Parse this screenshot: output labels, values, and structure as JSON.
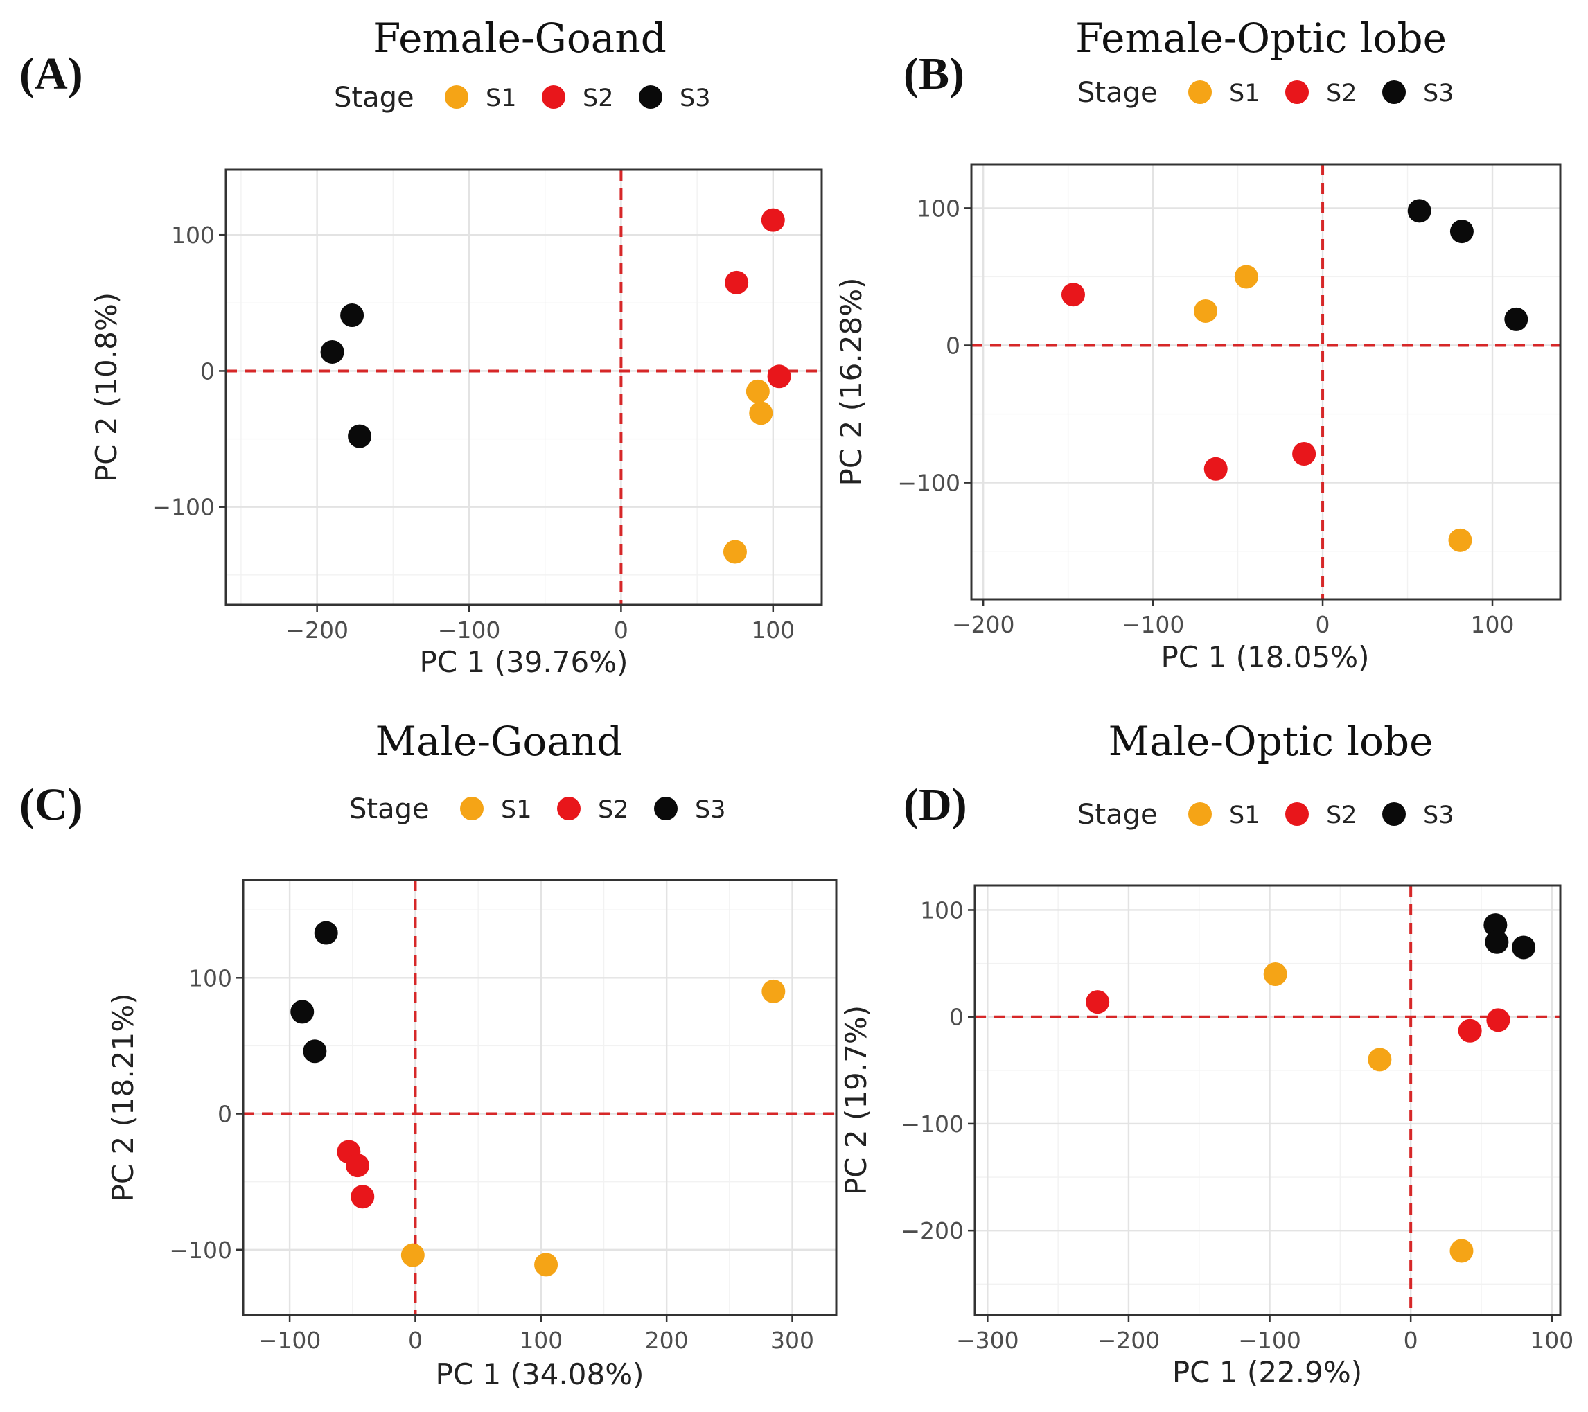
{
  "figure": {
    "legend_title": "Stage",
    "stages": [
      {
        "key": "S1",
        "label": "S1",
        "color": "#F5A416"
      },
      {
        "key": "S2",
        "label": "S2",
        "color": "#E8161B"
      },
      {
        "key": "S3",
        "label": "S3",
        "color": "#0A0A0A"
      }
    ]
  },
  "chart_data": [
    {
      "type": "scatter",
      "panel_label": "(A)",
      "title": "Female-Goand",
      "xlabel": "PC 1 (39.76%)",
      "ylabel": "PC 2 (10.8%)",
      "xlim": [
        -260,
        132
      ],
      "ylim": [
        -172,
        148
      ],
      "xticks": [
        -200,
        -100,
        0,
        100
      ],
      "xtick_labels": [
        "−200",
        "−100",
        "0",
        "100"
      ],
      "yticks": [
        -100,
        0,
        100
      ],
      "ytick_labels": [
        "−100",
        "0",
        "100"
      ],
      "series": [
        {
          "name": "S1",
          "points": [
            [
              90,
              -15
            ],
            [
              92,
              -31
            ],
            [
              75,
              -133
            ]
          ]
        },
        {
          "name": "S2",
          "points": [
            [
              100,
              111
            ],
            [
              76,
              65
            ],
            [
              104,
              -4
            ]
          ]
        },
        {
          "name": "S3",
          "points": [
            [
              -177,
              41
            ],
            [
              -190,
              14
            ],
            [
              -172,
              -48
            ]
          ]
        }
      ]
    },
    {
      "type": "scatter",
      "panel_label": "(B)",
      "title": "Female-Optic lobe",
      "xlabel": "PC 1 (18.05%)",
      "ylabel": "PC 2 (16.28%)",
      "xlim": [
        -207,
        140
      ],
      "ylim": [
        -185,
        132
      ],
      "xticks": [
        -200,
        -100,
        0,
        100
      ],
      "xtick_labels": [
        "−200",
        "−100",
        "0",
        "100"
      ],
      "yticks": [
        -100,
        0,
        100
      ],
      "ytick_labels": [
        "−100",
        "0",
        "100"
      ],
      "series": [
        {
          "name": "S1",
          "points": [
            [
              -45,
              50
            ],
            [
              -69,
              25
            ],
            [
              81,
              -142
            ]
          ]
        },
        {
          "name": "S2",
          "points": [
            [
              -147,
              37
            ],
            [
              -63,
              -90
            ],
            [
              -11,
              -79
            ]
          ]
        },
        {
          "name": "S3",
          "points": [
            [
              57,
              98
            ],
            [
              82,
              83
            ],
            [
              114,
              19
            ]
          ]
        }
      ]
    },
    {
      "type": "scatter",
      "panel_label": "(C)",
      "title": "Male-Goand",
      "xlabel": "PC 1 (34.08%)",
      "ylabel": "PC 2 (18.21%)",
      "xlim": [
        -137,
        335
      ],
      "ylim": [
        -148,
        172
      ],
      "xticks": [
        -100,
        0,
        100,
        200,
        300
      ],
      "xtick_labels": [
        "−100",
        "0",
        "100",
        "200",
        "300"
      ],
      "yticks": [
        -100,
        0,
        100
      ],
      "ytick_labels": [
        "−100",
        "0",
        "100"
      ],
      "series": [
        {
          "name": "S1",
          "points": [
            [
              285,
              90
            ],
            [
              -2,
              -104
            ],
            [
              104,
              -111
            ]
          ]
        },
        {
          "name": "S2",
          "points": [
            [
              -53,
              -28
            ],
            [
              -46,
              -38
            ],
            [
              -42,
              -61
            ]
          ]
        },
        {
          "name": "S3",
          "points": [
            [
              -71,
              133
            ],
            [
              -90,
              75
            ],
            [
              -80,
              46
            ]
          ]
        }
      ]
    },
    {
      "type": "scatter",
      "panel_label": "(D)",
      "title": "Male-Optic lobe",
      "xlabel": "PC 1 (22.9%)",
      "ylabel": "PC 2 (19.7%)",
      "xlim": [
        -309,
        106
      ],
      "ylim": [
        -279,
        123
      ],
      "xticks": [
        -300,
        -200,
        -100,
        0,
        100
      ],
      "xtick_labels": [
        "−300",
        "−200",
        "−100",
        "0",
        "100"
      ],
      "yticks": [
        -200,
        -100,
        0,
        100
      ],
      "ytick_labels": [
        "−200",
        "−100",
        "0",
        "100"
      ],
      "series": [
        {
          "name": "S1",
          "points": [
            [
              -96,
              40
            ],
            [
              -22,
              -40
            ],
            [
              36,
              -219
            ]
          ]
        },
        {
          "name": "S2",
          "points": [
            [
              -222,
              14
            ],
            [
              42,
              -13
            ],
            [
              62,
              -3
            ]
          ]
        },
        {
          "name": "S3",
          "points": [
            [
              60,
              86
            ],
            [
              61,
              70
            ],
            [
              80,
              65
            ]
          ]
        }
      ]
    }
  ]
}
